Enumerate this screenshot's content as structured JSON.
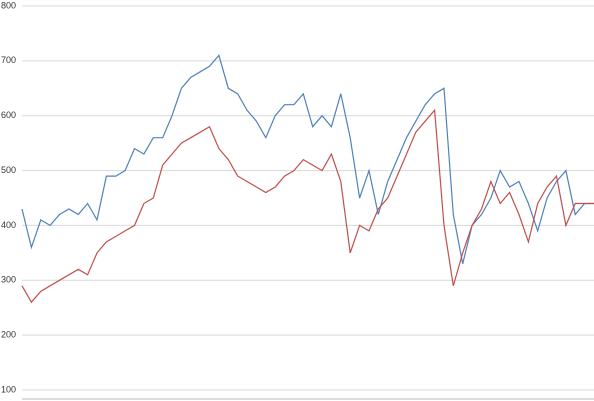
{
  "chart_data": {
    "type": "line",
    "ylim": [
      100,
      800
    ],
    "yticks": [
      100,
      200,
      300,
      400,
      500,
      600,
      700,
      800
    ],
    "grid": true,
    "series": [
      {
        "color": "#4f81bd",
        "values": [
          430,
          360,
          410,
          400,
          420,
          430,
          420,
          440,
          410,
          490,
          490,
          500,
          540,
          530,
          560,
          560,
          600,
          650,
          670,
          680,
          690,
          710,
          650,
          640,
          610,
          590,
          560,
          600,
          620,
          620,
          640,
          580,
          600,
          580,
          640,
          560,
          450,
          500,
          420,
          480,
          520,
          560,
          590,
          620,
          640,
          650,
          420,
          330,
          400,
          420,
          450,
          500,
          470,
          480,
          440,
          390,
          450,
          480,
          500,
          420,
          440,
          440
        ]
      },
      {
        "color": "#c0504d",
        "values": [
          290,
          260,
          280,
          290,
          300,
          310,
          320,
          310,
          350,
          370,
          380,
          390,
          400,
          440,
          450,
          510,
          530,
          550,
          560,
          570,
          580,
          540,
          520,
          490,
          480,
          470,
          460,
          470,
          490,
          500,
          520,
          510,
          500,
          530,
          480,
          350,
          400,
          390,
          430,
          450,
          490,
          530,
          570,
          590,
          610,
          400,
          290,
          350,
          400,
          430,
          480,
          440,
          460,
          420,
          370,
          440,
          470,
          490,
          400,
          440,
          440,
          440
        ]
      }
    ]
  }
}
